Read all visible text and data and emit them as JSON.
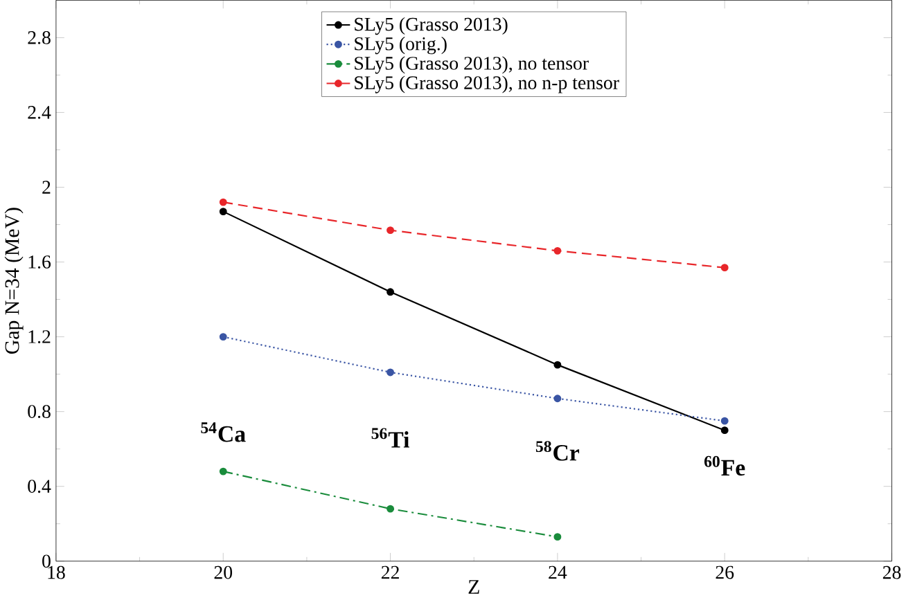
{
  "chart_data": {
    "type": "line",
    "xlabel": "Z",
    "ylabel": "Gap N=34 (MeV)",
    "x": [
      20,
      22,
      24,
      26
    ],
    "series": [
      {
        "name": "SLy5 (Grasso 2013)",
        "color": "#000000",
        "line_style": "solid",
        "values": [
          1.87,
          1.44,
          1.05,
          0.7
        ]
      },
      {
        "name": "SLy5 (orig.)",
        "color": "#3a55a4",
        "line_style": "dotted",
        "values": [
          1.2,
          1.01,
          0.87,
          0.75
        ]
      },
      {
        "name": "SLy5 (Grasso 2013), no tensor",
        "color": "#1a8c3c",
        "line_style": "dashdot",
        "values": [
          0.48,
          0.28,
          0.13,
          null
        ]
      },
      {
        "name": "SLy5 (Grasso 2013), no n-p tensor",
        "color": "#e8262a",
        "line_style": "dashed",
        "values": [
          1.92,
          1.77,
          1.66,
          1.57
        ]
      }
    ],
    "annotations": [
      "$^{54}$Ca",
      "$^{56}$Ti",
      "$^{58}$Cr",
      "$^{60}$Fe"
    ],
    "xlim": [
      18,
      28
    ],
    "xticks": [
      18,
      20,
      22,
      24,
      26,
      28
    ],
    "ylim": [
      0,
      3
    ],
    "yticks": [
      0,
      0.4,
      0.8,
      1.2,
      1.6,
      2,
      2.4,
      2.8
    ],
    "grid": false,
    "legend": "top",
    "marker": "circle"
  }
}
